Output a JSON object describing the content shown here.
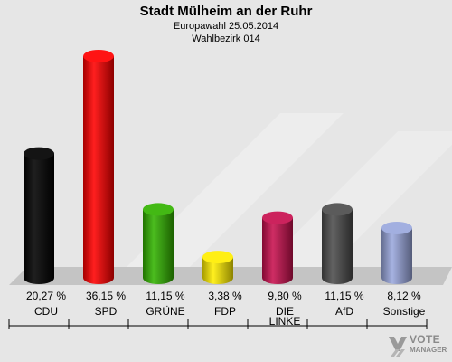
{
  "header": {
    "title": "Stadt Mülheim an der Ruhr",
    "subtitle": "Europawahl 25.05.2014",
    "district": "Wahlbezirk 014"
  },
  "logo": {
    "text": "VOTE",
    "sub": "MANAGER"
  },
  "chart_data": {
    "type": "bar",
    "style": "3d-cylinder",
    "title": "Stadt Mülheim an der Ruhr",
    "subtitle": "Europawahl 25.05.2014 / Wahlbezirk 014",
    "categories": [
      "CDU",
      "SPD",
      "GRÜNE",
      "FDP",
      "DIE LINKE",
      "AfD",
      "Sonstige"
    ],
    "category_lines": [
      [
        "CDU"
      ],
      [
        "SPD"
      ],
      [
        "GRÜNE"
      ],
      [
        "FDP"
      ],
      [
        "DIE",
        "LINKE"
      ],
      [
        "AfD"
      ],
      [
        "Sonstige"
      ]
    ],
    "values": [
      20.27,
      36.15,
      11.15,
      3.38,
      9.8,
      11.15,
      8.12
    ],
    "value_labels": [
      "20,27 %",
      "36,15 %",
      "11,15 %",
      "3,38 %",
      "9,80 %",
      "11,15 %",
      "8,12 %"
    ],
    "colors": [
      "#000000",
      "#ff0000",
      "#33b300",
      "#ffee00",
      "#c8104f",
      "#4d4d4d",
      "#9aa8dd"
    ],
    "unit": "%",
    "ylim": [
      0,
      36.15
    ],
    "grid": false,
    "legend": "none"
  }
}
